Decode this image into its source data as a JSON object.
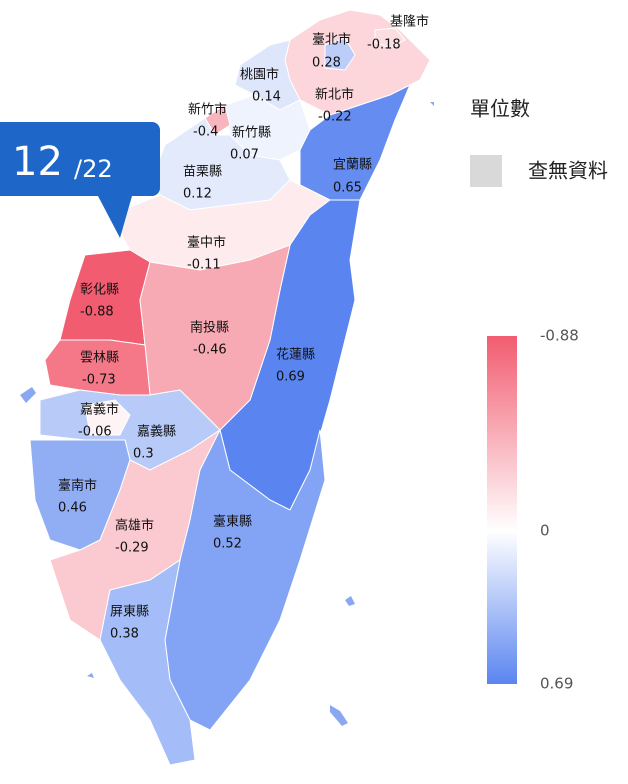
{
  "title": "單位數",
  "no_data": "查無資料",
  "callout": {
    "value": "12",
    "total": "/22"
  },
  "legend": {
    "ticks": [
      -0.88,
      0,
      0.69
    ],
    "colors": [
      "#f25c70",
      "#ffffff",
      "#5a85f0"
    ]
  },
  "regions": [
    {
      "name": "新北市",
      "value": -0.22
    },
    {
      "name": "臺北市",
      "value": 0.28
    },
    {
      "name": "基隆市",
      "value": -0.18
    },
    {
      "name": "桃園市",
      "value": 0.14
    },
    {
      "name": "新竹縣",
      "value": 0.07
    },
    {
      "name": "新竹市",
      "value": -0.4
    },
    {
      "name": "苗栗縣",
      "value": 0.12
    },
    {
      "name": "宜蘭縣",
      "value": 0.65
    },
    {
      "name": "臺中市",
      "value": -0.11
    },
    {
      "name": "花蓮縣",
      "value": 0.69
    },
    {
      "name": "彰化縣",
      "value": -0.88
    },
    {
      "name": "南投縣",
      "value": -0.46
    },
    {
      "name": "雲林縣",
      "value": -0.73
    },
    {
      "name": "嘉義縣",
      "value": 0.3
    },
    {
      "name": "嘉義市",
      "value": -0.06
    },
    {
      "name": "臺南市",
      "value": 0.46
    },
    {
      "name": "高雄市",
      "value": -0.29
    },
    {
      "name": "臺東縣",
      "value": 0.52
    },
    {
      "name": "屏東縣",
      "value": 0.38
    }
  ]
}
